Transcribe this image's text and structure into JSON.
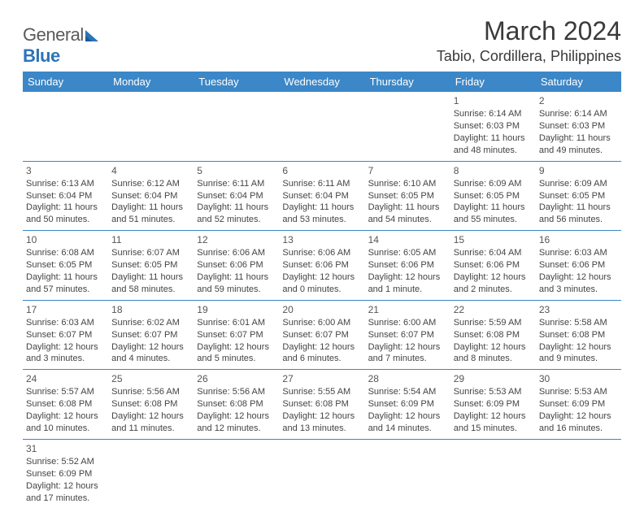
{
  "logo": {
    "text1": "General",
    "text2": "Blue"
  },
  "header": {
    "title": "March 2024",
    "location": "Tabio, Cordillera, Philippines"
  },
  "colors": {
    "header_bg": "#3b87c8",
    "header_text": "#ffffff",
    "cell_border": "#3b87c8",
    "body_text": "#444444",
    "logo_gray": "#5a5a5a",
    "logo_blue": "#2c74b8"
  },
  "days": [
    "Sunday",
    "Monday",
    "Tuesday",
    "Wednesday",
    "Thursday",
    "Friday",
    "Saturday"
  ],
  "weeks": [
    [
      null,
      null,
      null,
      null,
      null,
      {
        "n": "1",
        "sr": "Sunrise: 6:14 AM",
        "ss": "Sunset: 6:03 PM",
        "dl1": "Daylight: 11 hours",
        "dl2": "and 48 minutes."
      },
      {
        "n": "2",
        "sr": "Sunrise: 6:14 AM",
        "ss": "Sunset: 6:03 PM",
        "dl1": "Daylight: 11 hours",
        "dl2": "and 49 minutes."
      }
    ],
    [
      {
        "n": "3",
        "sr": "Sunrise: 6:13 AM",
        "ss": "Sunset: 6:04 PM",
        "dl1": "Daylight: 11 hours",
        "dl2": "and 50 minutes."
      },
      {
        "n": "4",
        "sr": "Sunrise: 6:12 AM",
        "ss": "Sunset: 6:04 PM",
        "dl1": "Daylight: 11 hours",
        "dl2": "and 51 minutes."
      },
      {
        "n": "5",
        "sr": "Sunrise: 6:11 AM",
        "ss": "Sunset: 6:04 PM",
        "dl1": "Daylight: 11 hours",
        "dl2": "and 52 minutes."
      },
      {
        "n": "6",
        "sr": "Sunrise: 6:11 AM",
        "ss": "Sunset: 6:04 PM",
        "dl1": "Daylight: 11 hours",
        "dl2": "and 53 minutes."
      },
      {
        "n": "7",
        "sr": "Sunrise: 6:10 AM",
        "ss": "Sunset: 6:05 PM",
        "dl1": "Daylight: 11 hours",
        "dl2": "and 54 minutes."
      },
      {
        "n": "8",
        "sr": "Sunrise: 6:09 AM",
        "ss": "Sunset: 6:05 PM",
        "dl1": "Daylight: 11 hours",
        "dl2": "and 55 minutes."
      },
      {
        "n": "9",
        "sr": "Sunrise: 6:09 AM",
        "ss": "Sunset: 6:05 PM",
        "dl1": "Daylight: 11 hours",
        "dl2": "and 56 minutes."
      }
    ],
    [
      {
        "n": "10",
        "sr": "Sunrise: 6:08 AM",
        "ss": "Sunset: 6:05 PM",
        "dl1": "Daylight: 11 hours",
        "dl2": "and 57 minutes."
      },
      {
        "n": "11",
        "sr": "Sunrise: 6:07 AM",
        "ss": "Sunset: 6:05 PM",
        "dl1": "Daylight: 11 hours",
        "dl2": "and 58 minutes."
      },
      {
        "n": "12",
        "sr": "Sunrise: 6:06 AM",
        "ss": "Sunset: 6:06 PM",
        "dl1": "Daylight: 11 hours",
        "dl2": "and 59 minutes."
      },
      {
        "n": "13",
        "sr": "Sunrise: 6:06 AM",
        "ss": "Sunset: 6:06 PM",
        "dl1": "Daylight: 12 hours",
        "dl2": "and 0 minutes."
      },
      {
        "n": "14",
        "sr": "Sunrise: 6:05 AM",
        "ss": "Sunset: 6:06 PM",
        "dl1": "Daylight: 12 hours",
        "dl2": "and 1 minute."
      },
      {
        "n": "15",
        "sr": "Sunrise: 6:04 AM",
        "ss": "Sunset: 6:06 PM",
        "dl1": "Daylight: 12 hours",
        "dl2": "and 2 minutes."
      },
      {
        "n": "16",
        "sr": "Sunrise: 6:03 AM",
        "ss": "Sunset: 6:06 PM",
        "dl1": "Daylight: 12 hours",
        "dl2": "and 3 minutes."
      }
    ],
    [
      {
        "n": "17",
        "sr": "Sunrise: 6:03 AM",
        "ss": "Sunset: 6:07 PM",
        "dl1": "Daylight: 12 hours",
        "dl2": "and 3 minutes."
      },
      {
        "n": "18",
        "sr": "Sunrise: 6:02 AM",
        "ss": "Sunset: 6:07 PM",
        "dl1": "Daylight: 12 hours",
        "dl2": "and 4 minutes."
      },
      {
        "n": "19",
        "sr": "Sunrise: 6:01 AM",
        "ss": "Sunset: 6:07 PM",
        "dl1": "Daylight: 12 hours",
        "dl2": "and 5 minutes."
      },
      {
        "n": "20",
        "sr": "Sunrise: 6:00 AM",
        "ss": "Sunset: 6:07 PM",
        "dl1": "Daylight: 12 hours",
        "dl2": "and 6 minutes."
      },
      {
        "n": "21",
        "sr": "Sunrise: 6:00 AM",
        "ss": "Sunset: 6:07 PM",
        "dl1": "Daylight: 12 hours",
        "dl2": "and 7 minutes."
      },
      {
        "n": "22",
        "sr": "Sunrise: 5:59 AM",
        "ss": "Sunset: 6:08 PM",
        "dl1": "Daylight: 12 hours",
        "dl2": "and 8 minutes."
      },
      {
        "n": "23",
        "sr": "Sunrise: 5:58 AM",
        "ss": "Sunset: 6:08 PM",
        "dl1": "Daylight: 12 hours",
        "dl2": "and 9 minutes."
      }
    ],
    [
      {
        "n": "24",
        "sr": "Sunrise: 5:57 AM",
        "ss": "Sunset: 6:08 PM",
        "dl1": "Daylight: 12 hours",
        "dl2": "and 10 minutes."
      },
      {
        "n": "25",
        "sr": "Sunrise: 5:56 AM",
        "ss": "Sunset: 6:08 PM",
        "dl1": "Daylight: 12 hours",
        "dl2": "and 11 minutes."
      },
      {
        "n": "26",
        "sr": "Sunrise: 5:56 AM",
        "ss": "Sunset: 6:08 PM",
        "dl1": "Daylight: 12 hours",
        "dl2": "and 12 minutes."
      },
      {
        "n": "27",
        "sr": "Sunrise: 5:55 AM",
        "ss": "Sunset: 6:08 PM",
        "dl1": "Daylight: 12 hours",
        "dl2": "and 13 minutes."
      },
      {
        "n": "28",
        "sr": "Sunrise: 5:54 AM",
        "ss": "Sunset: 6:09 PM",
        "dl1": "Daylight: 12 hours",
        "dl2": "and 14 minutes."
      },
      {
        "n": "29",
        "sr": "Sunrise: 5:53 AM",
        "ss": "Sunset: 6:09 PM",
        "dl1": "Daylight: 12 hours",
        "dl2": "and 15 minutes."
      },
      {
        "n": "30",
        "sr": "Sunrise: 5:53 AM",
        "ss": "Sunset: 6:09 PM",
        "dl1": "Daylight: 12 hours",
        "dl2": "and 16 minutes."
      }
    ],
    [
      {
        "n": "31",
        "sr": "Sunrise: 5:52 AM",
        "ss": "Sunset: 6:09 PM",
        "dl1": "Daylight: 12 hours",
        "dl2": "and 17 minutes."
      },
      null,
      null,
      null,
      null,
      null,
      null
    ]
  ]
}
